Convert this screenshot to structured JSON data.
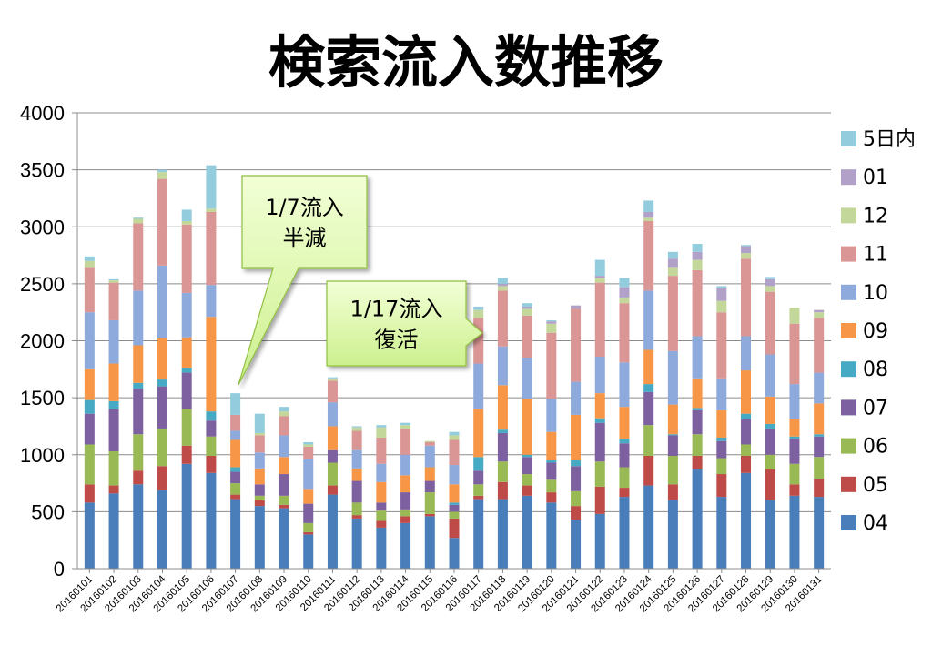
{
  "chart_data": {
    "type": "bar",
    "stacked": true,
    "title": "検索流入数推移",
    "xlabel": "",
    "ylabel": "",
    "ylim": [
      0,
      4000
    ],
    "yticks": [
      "0",
      "500",
      "1000",
      "1500",
      "2000",
      "2500",
      "3000",
      "3500",
      "4000"
    ],
    "grid": true,
    "legend_position": "right",
    "categories": [
      "20160101",
      "20160102",
      "20160103",
      "20160104",
      "20160105",
      "20160106",
      "20160107",
      "20160108",
      "20160109",
      "20160110",
      "20160111",
      "20160112",
      "20160113",
      "20160114",
      "20160115",
      "20160116",
      "20160117",
      "20160118",
      "20160119",
      "20160120",
      "20160121",
      "20160122",
      "20160123",
      "20160124",
      "20160125",
      "20160126",
      "20160127",
      "20160128",
      "20160129",
      "20160130",
      "20160131"
    ],
    "series": [
      {
        "name": "04",
        "color": "#4a7ebb",
        "values": [
          580,
          660,
          740,
          690,
          920,
          840,
          610,
          550,
          530,
          300,
          650,
          440,
          360,
          400,
          460,
          270,
          610,
          610,
          640,
          580,
          430,
          480,
          630,
          730,
          600,
          870,
          630,
          840,
          600,
          640,
          630
        ]
      },
      {
        "name": "05",
        "color": "#be4b48",
        "values": [
          160,
          70,
          120,
          210,
          160,
          150,
          40,
          50,
          30,
          20,
          80,
          30,
          60,
          60,
          20,
          170,
          30,
          150,
          90,
          90,
          120,
          240,
          80,
          260,
          140,
          120,
          200,
          150,
          270,
          100,
          160
        ]
      },
      {
        "name": "06",
        "color": "#98b954",
        "values": [
          350,
          300,
          320,
          330,
          320,
          170,
          100,
          40,
          80,
          80,
          200,
          110,
          90,
          60,
          190,
          60,
          100,
          180,
          100,
          110,
          130,
          220,
          180,
          270,
          250,
          190,
          140,
          100,
          130,
          180,
          190
        ]
      },
      {
        "name": "07",
        "color": "#7d60a0",
        "values": [
          270,
          370,
          400,
          370,
          320,
          140,
          100,
          100,
          190,
          170,
          110,
          190,
          70,
          150,
          100,
          60,
          120,
          250,
          150,
          150,
          220,
          340,
          210,
          290,
          180,
          210,
          150,
          220,
          230,
          220,
          180
        ]
      },
      {
        "name": "08",
        "color": "#46aac5",
        "values": [
          120,
          70,
          50,
          60,
          40,
          80,
          40,
          0,
          0,
          0,
          0,
          0,
          0,
          0,
          0,
          20,
          120,
          30,
          20,
          20,
          50,
          40,
          40,
          70,
          10,
          20,
          30,
          50,
          40,
          20,
          20
        ]
      },
      {
        "name": "09",
        "color": "#f79646",
        "values": [
          270,
          330,
          330,
          360,
          270,
          830,
          240,
          140,
          150,
          130,
          210,
          110,
          180,
          150,
          120,
          160,
          420,
          390,
          490,
          250,
          400,
          220,
          280,
          300,
          260,
          260,
          240,
          380,
          240,
          150,
          270
        ]
      },
      {
        "name": "10",
        "color": "#8ea9db",
        "values": [
          500,
          380,
          480,
          640,
          390,
          280,
          80,
          140,
          190,
          260,
          210,
          160,
          160,
          180,
          190,
          170,
          400,
          340,
          360,
          290,
          290,
          320,
          390,
          520,
          470,
          370,
          280,
          300,
          370,
          310,
          270
        ]
      },
      {
        "name": "11",
        "color": "#da9694",
        "values": [
          390,
          330,
          590,
          760,
          600,
          640,
          140,
          150,
          170,
          110,
          190,
          170,
          230,
          230,
          30,
          220,
          400,
          490,
          370,
          580,
          640,
          650,
          520,
          610,
          660,
          580,
          580,
          680,
          550,
          530,
          480
        ]
      },
      {
        "name": "12",
        "color": "#c4d79b",
        "values": [
          60,
          20,
          40,
          60,
          30,
          30,
          0,
          20,
          40,
          20,
          20,
          30,
          90,
          30,
          10,
          40,
          70,
          40,
          60,
          80,
          0,
          40,
          50,
          30,
          70,
          90,
          100,
          50,
          50,
          140,
          50
        ]
      },
      {
        "name": "01",
        "color": "#b1a0c7",
        "values": [
          0,
          0,
          0,
          0,
          0,
          0,
          0,
          0,
          0,
          0,
          0,
          0,
          0,
          0,
          0,
          0,
          0,
          20,
          20,
          20,
          30,
          20,
          90,
          50,
          80,
          70,
          110,
          60,
          60,
          0,
          20
        ]
      },
      {
        "name": "5日内",
        "color": "#93cddd",
        "values": [
          40,
          10,
          10,
          20,
          100,
          380,
          190,
          170,
          40,
          20,
          10,
          10,
          20,
          20,
          0,
          30,
          30,
          50,
          30,
          10,
          0,
          140,
          80,
          100,
          60,
          70,
          20,
          10,
          20,
          0,
          0
        ]
      }
    ],
    "annotations": [
      {
        "text_lines": [
          "1/7流入",
          "半減"
        ],
        "category": "20160107"
      },
      {
        "text_lines": [
          "1/17流入",
          "復活"
        ],
        "category": "20160117"
      }
    ]
  }
}
